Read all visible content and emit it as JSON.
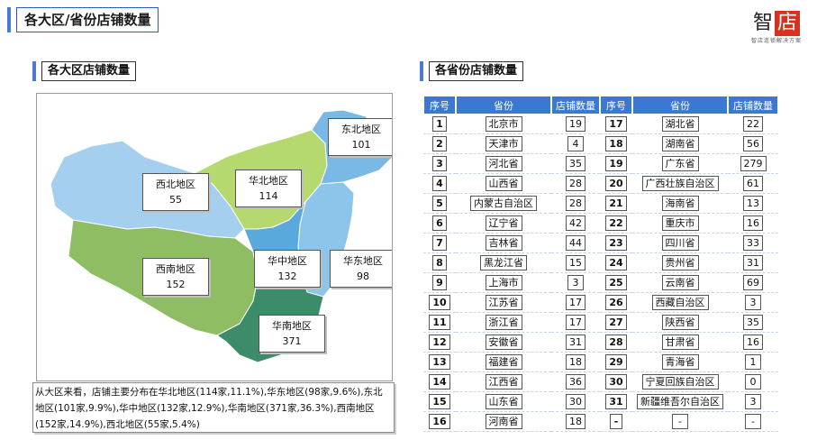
{
  "page": {
    "title": "各大区/省份店铺数量"
  },
  "logo": {
    "main_char": "智",
    "accent_char": "店",
    "tagline": "智店连锁解决方案"
  },
  "left_section": {
    "title": "各大区店铺数量"
  },
  "right_section": {
    "title": "各省份店铺数量"
  },
  "regions": [
    {
      "name": "东北地区",
      "count": "101"
    },
    {
      "name": "西北地区",
      "count": "55"
    },
    {
      "name": "华北地区",
      "count": "114"
    },
    {
      "name": "华中地区",
      "count": "132"
    },
    {
      "name": "华东地区",
      "count": "98"
    },
    {
      "name": "西南地区",
      "count": "152"
    },
    {
      "name": "华南地区",
      "count": "371"
    }
  ],
  "region_colors": {
    "东北地区": "#7ab9e6",
    "西北地区": "#a5cfee",
    "华北地区": "#b5d96f",
    "华中地区": "#5aa9dc",
    "华东地区": "#8cc4ea",
    "西南地区": "#8ebd63",
    "华南地区": "#3c8c6a"
  },
  "summary": "从大区来看，店铺主要分布在华北地区(114家,11.1%),华东地区(98家,9.6%),东北地区(101家,9.9%),华中地区(132家,12.9%),华南地区(371家,36.3%),西南地区(152家,14.9%),西北地区(55家,5.4%)",
  "table": {
    "headers": [
      "序号",
      "省份",
      "店铺数量",
      "序号",
      "省份",
      "店铺数量"
    ],
    "rows": [
      [
        "1",
        "北京市",
        "19",
        "17",
        "湖北省",
        "22"
      ],
      [
        "2",
        "天津市",
        "4",
        "18",
        "湖南省",
        "56"
      ],
      [
        "3",
        "河北省",
        "35",
        "19",
        "广东省",
        "279"
      ],
      [
        "4",
        "山西省",
        "28",
        "20",
        "广西壮族自治区",
        "61"
      ],
      [
        "5",
        "内蒙古自治区",
        "28",
        "21",
        "海南省",
        "13"
      ],
      [
        "6",
        "辽宁省",
        "42",
        "22",
        "重庆市",
        "16"
      ],
      [
        "7",
        "吉林省",
        "44",
        "23",
        "四川省",
        "33"
      ],
      [
        "8",
        "黑龙江省",
        "15",
        "24",
        "贵州省",
        "31"
      ],
      [
        "9",
        "上海市",
        "3",
        "25",
        "云南省",
        "69"
      ],
      [
        "10",
        "江苏省",
        "17",
        "26",
        "西藏自治区",
        "3"
      ],
      [
        "11",
        "浙江省",
        "17",
        "27",
        "陕西省",
        "35"
      ],
      [
        "12",
        "安徽省",
        "31",
        "28",
        "甘肃省",
        "16"
      ],
      [
        "13",
        "福建省",
        "18",
        "29",
        "青海省",
        "1"
      ],
      [
        "14",
        "江西省",
        "36",
        "30",
        "宁夏回族自治区",
        "0"
      ],
      [
        "15",
        "山东省",
        "30",
        "31",
        "新疆维吾尔自治区",
        "3"
      ],
      [
        "16",
        "河南省",
        "18",
        "-",
        "-",
        "-"
      ]
    ]
  },
  "colors": {
    "accent": "#3a78d4",
    "title_border": "#2b57c9",
    "logo_red": "#d6321f"
  }
}
